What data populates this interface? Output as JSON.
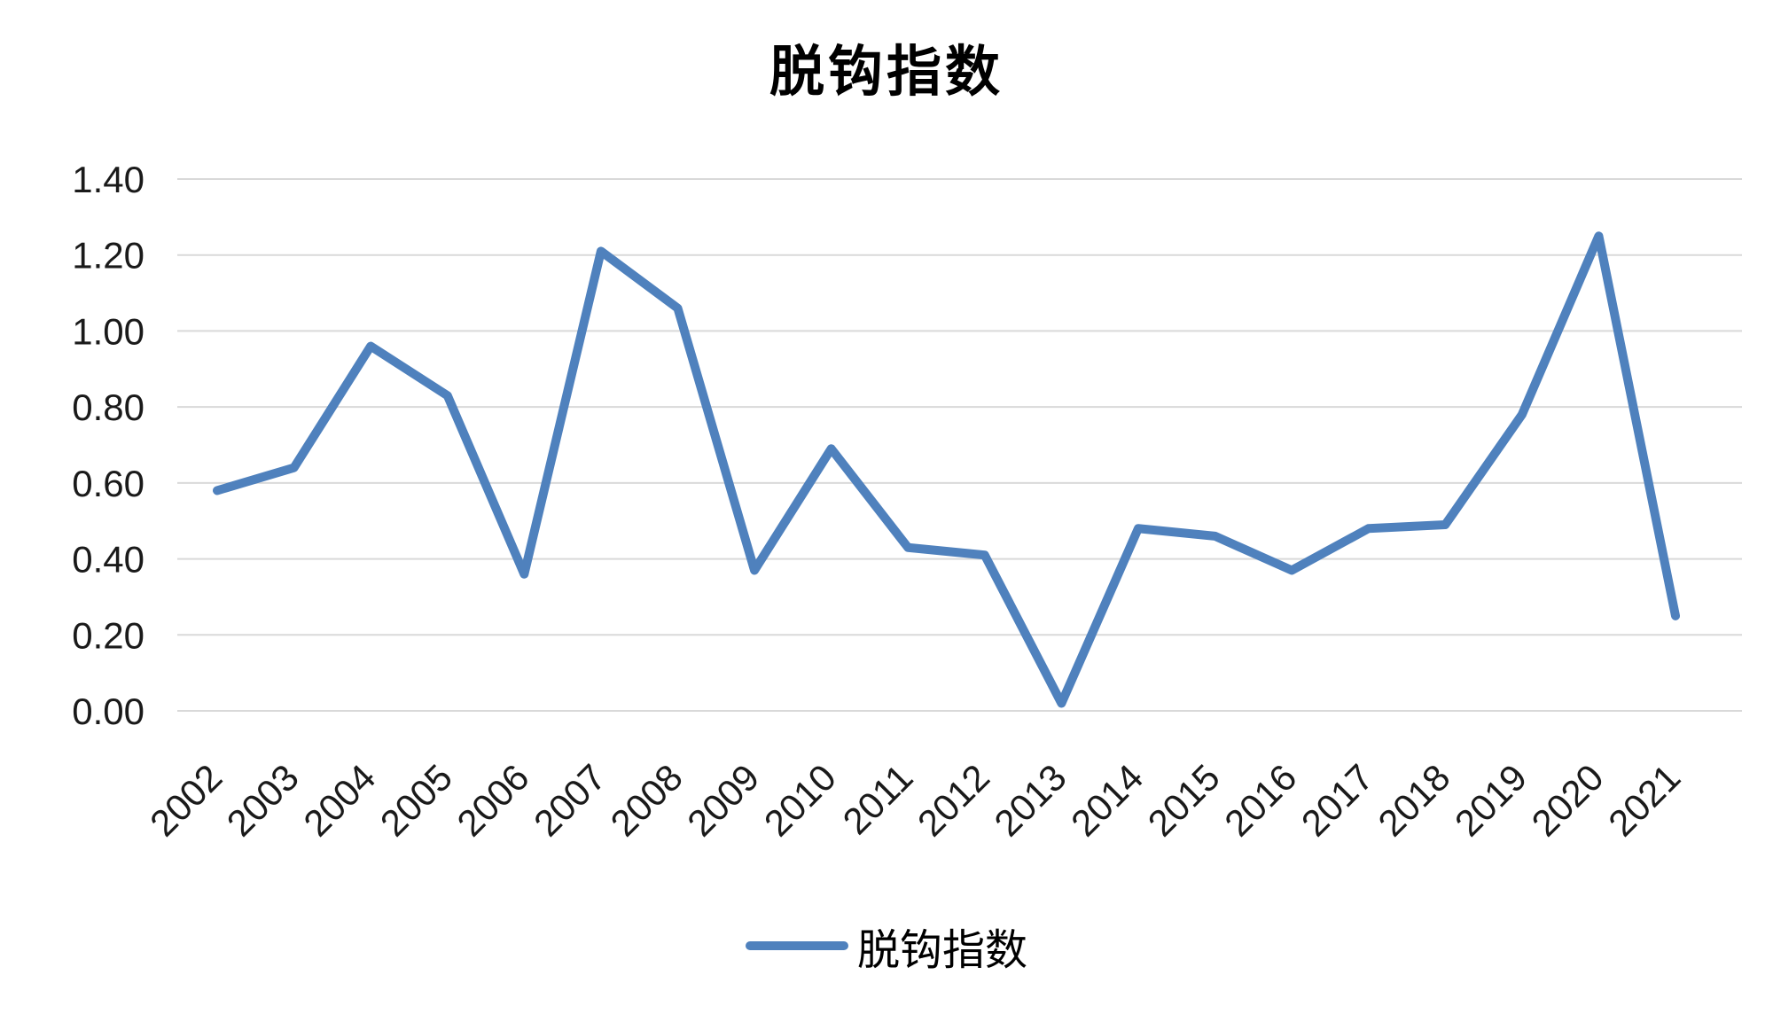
{
  "title": "脱钩指数",
  "legend": {
    "label": "脱钩指数",
    "swatch_color": "#4F81BD"
  },
  "chart_data": {
    "type": "line",
    "title": "脱钩指数",
    "x": [
      "2002",
      "2003",
      "2004",
      "2005",
      "2006",
      "2007",
      "2008",
      "2009",
      "2010",
      "2011",
      "2012",
      "2013",
      "2014",
      "2015",
      "2016",
      "2017",
      "2018",
      "2019",
      "2020",
      "2021"
    ],
    "series": [
      {
        "name": "脱钩指数",
        "values": [
          0.58,
          0.64,
          0.96,
          0.83,
          0.36,
          1.21,
          1.06,
          0.37,
          0.69,
          0.43,
          0.41,
          0.02,
          0.48,
          0.46,
          0.37,
          0.48,
          0.49,
          0.78,
          1.25,
          0.25
        ]
      }
    ],
    "xlabel": "",
    "ylabel": "",
    "ylim": [
      0,
      1.4
    ],
    "ytick_step": 0.2,
    "ytick_labels": [
      "0.00",
      "0.20",
      "0.40",
      "0.60",
      "0.80",
      "1.00",
      "1.20",
      "1.40"
    ],
    "grid": true,
    "grid_color": "#D9D9D9",
    "line_color": "#4F81BD",
    "legend_position": "bottom"
  }
}
